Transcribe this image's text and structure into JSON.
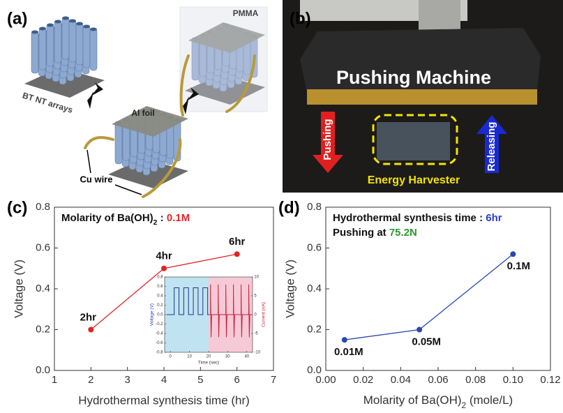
{
  "panels": {
    "a": {
      "label": "(a)",
      "bt_nt_arrays": "BT NT arrays",
      "al_foil": "Al foil",
      "pmma": "PMMA",
      "cu_wire": "Cu wire"
    },
    "b": {
      "label": "(b)",
      "machine": "Pushing Machine",
      "pushing": "Pushing",
      "releasing": "Releasing",
      "harvester": "Energy Harvester"
    }
  },
  "chart_data": [
    {
      "type": "line",
      "panel_label": "(c)",
      "annotation": [
        {
          "text": "Molarity of Ba(OH)"
        },
        {
          "text": "2",
          "sub": true
        },
        {
          "text": " : "
        },
        {
          "text": "0.1M",
          "color": "#e8262b"
        }
      ],
      "xlabel": "Hydrothermal synthesis time (hr)",
      "ylabel": "Voltage (V)",
      "x": [
        2,
        4,
        6
      ],
      "series": [
        {
          "color": "#e02424",
          "values": [
            0.2,
            0.5,
            0.57
          ],
          "point_labels": [
            "2hr",
            "4hr",
            "6hr"
          ]
        }
      ],
      "xlim": [
        1,
        7
      ],
      "xticks": [
        1,
        2,
        3,
        4,
        5,
        6,
        7
      ],
      "ylim": [
        0,
        0.8
      ],
      "yticks": [
        {
          "value": 0,
          "label": "0.0"
        },
        0.2,
        0.4,
        0.6,
        0.8
      ]
    },
    {
      "type": "line",
      "panel_label": "(d)",
      "annotation": [
        {
          "text": "Hydrothermal synthesis time : "
        },
        {
          "text": "6hr",
          "color": "#2b3fd0"
        }
      ],
      "annotation2": [
        {
          "text": "Pushing at "
        },
        {
          "text": "75.2N",
          "color": "#2a9a2a"
        }
      ],
      "xlabel": [
        {
          "text": "Molarity of Ba(OH)"
        },
        {
          "text": "2",
          "sub": true
        },
        {
          "text": " (mole/L)"
        }
      ],
      "ylabel": "Voltage (V)",
      "x": [
        0.01,
        0.05,
        0.1
      ],
      "series": [
        {
          "color": "#2846b0",
          "values": [
            0.15,
            0.2,
            0.57
          ],
          "point_labels": [
            "0.01M",
            "0.05M",
            "0.1M"
          ]
        }
      ],
      "xlim": [
        0,
        0.12
      ],
      "xticks": [
        {
          "value": 0,
          "label": "0.00"
        },
        0.02,
        0.04,
        0.06,
        0.08,
        {
          "value": 0.1,
          "label": "0.10"
        },
        0.12
      ],
      "ylim": [
        0,
        0.8
      ],
      "yticks": [
        {
          "value": 0,
          "label": "0.0"
        },
        0.2,
        0.4,
        0.6,
        0.8
      ]
    },
    {
      "type": "line",
      "xlabel": "Time (sec)",
      "ylabel": "Voltage (V)",
      "y2label": "Current (nA)",
      "series": [
        {
          "color": "#1a3a8a",
          "x": [
            -2,
            2,
            2,
            4.5,
            4.5,
            7,
            7,
            9.5,
            9.5,
            12,
            12,
            14.5,
            14.5,
            17,
            17,
            19.5,
            19.5,
            20
          ],
          "values": [
            0,
            0,
            0.57,
            0.57,
            0,
            0,
            0.57,
            0.57,
            0,
            0,
            0.57,
            0.57,
            0,
            0,
            0.57,
            0.57,
            0,
            0
          ]
        },
        {
          "color": "#c8203a",
          "axis": "y2",
          "x": [
            20,
            21,
            21,
            21.3,
            21.6,
            25,
            25,
            25.3,
            25.6,
            29,
            29,
            29.3,
            29.6,
            33,
            33,
            33.3,
            33.6,
            37,
            37,
            37.3,
            37.6,
            41,
            41,
            41.3,
            41.6,
            43
          ],
          "values": [
            0,
            0,
            8,
            -6,
            0,
            0,
            8,
            -6,
            0,
            0,
            8,
            -6,
            0,
            0,
            8,
            -6,
            0,
            0,
            8,
            -6,
            0,
            0,
            8,
            -6,
            0,
            0
          ]
        }
      ],
      "xlim": [
        -3,
        43
      ],
      "xticks": [
        0,
        10,
        20,
        30,
        40
      ],
      "ylim": [
        -0.8,
        0.8
      ],
      "yticks": [
        -0.8,
        -0.6,
        -0.4,
        -0.2,
        {
          "value": 0,
          "label": "0.0"
        },
        0.2,
        0.4,
        0.6,
        0.8
      ],
      "y2lim": [
        -10,
        10
      ],
      "y2ticks": [
        -10,
        -5,
        0,
        5,
        10
      ]
    }
  ]
}
